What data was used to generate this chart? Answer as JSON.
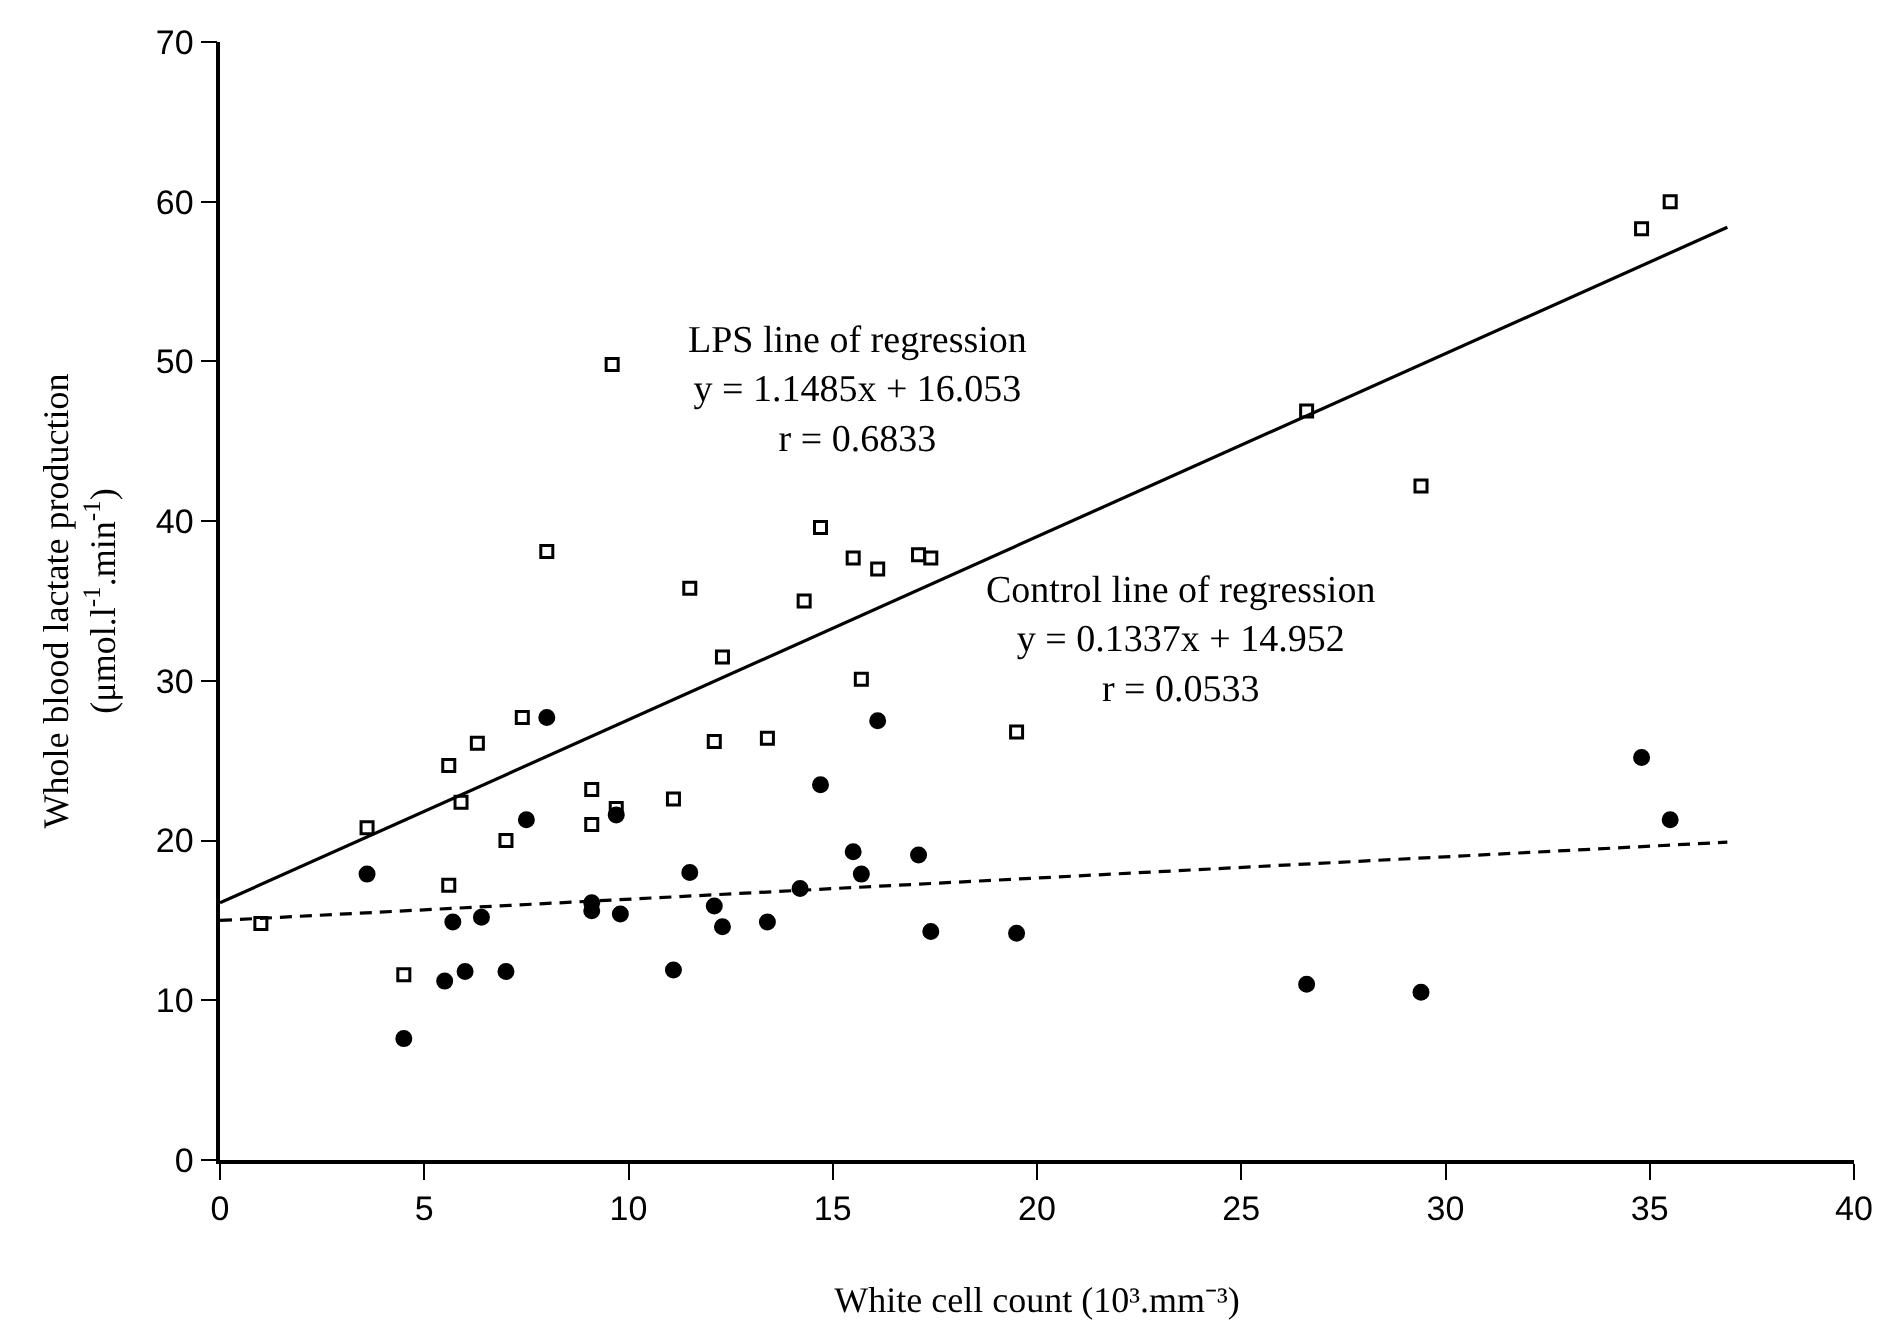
{
  "chart_data": {
    "type": "scatter",
    "xlabel": "White cell count (10³.mm⁻³)",
    "ylabel": "Whole blood lactate production\n(μmol.l$^{-1}$.min$^{-1}$)",
    "xlim": [
      0,
      40
    ],
    "xticks": [
      0,
      5,
      10,
      15,
      20,
      25,
      30,
      35,
      40
    ],
    "ylim": [
      0,
      70
    ],
    "yticks": [
      0,
      10,
      20,
      30,
      40,
      50,
      60,
      70
    ],
    "series": [
      {
        "marker": "square",
        "color": "#000000",
        "x": [
          1.0,
          3.6,
          4.5,
          5.6,
          5.6,
          5.9,
          6.3,
          7.0,
          7.4,
          8.0,
          9.1,
          9.1,
          9.6,
          9.7,
          11.1,
          11.5,
          12.1,
          12.3,
          13.4,
          14.3,
          14.7,
          15.5,
          15.7,
          16.1,
          17.1,
          17.4,
          19.5,
          26.6,
          29.4,
          34.8,
          35.5
        ],
        "values": [
          14.8,
          20.8,
          11.6,
          17.2,
          24.7,
          22.4,
          26.1,
          20.0,
          27.7,
          38.1,
          23.2,
          21.0,
          49.8,
          22.0,
          22.6,
          35.8,
          26.2,
          31.5,
          26.4,
          35.0,
          39.6,
          37.7,
          30.1,
          37.0,
          37.9,
          37.7,
          26.8,
          46.9,
          42.2,
          58.3,
          60.0
        ]
      },
      {
        "marker": "circle",
        "color": "#000000",
        "x": [
          3.6,
          4.5,
          5.5,
          5.7,
          6.0,
          6.4,
          7.0,
          7.5,
          8.0,
          9.1,
          9.1,
          9.7,
          9.8,
          11.1,
          11.5,
          12.1,
          12.3,
          13.4,
          14.2,
          14.7,
          15.5,
          15.7,
          16.1,
          17.1,
          17.4,
          19.5,
          26.6,
          29.4,
          34.8,
          35.5
        ],
        "values": [
          17.9,
          7.6,
          11.2,
          14.9,
          11.8,
          15.2,
          11.8,
          21.3,
          27.7,
          16.1,
          15.6,
          21.6,
          15.4,
          11.9,
          18.0,
          15.9,
          14.6,
          14.9,
          17.0,
          23.5,
          19.3,
          17.9,
          27.5,
          19.1,
          14.3,
          14.2,
          11.0,
          10.5,
          25.2,
          21.3
        ]
      },
      {
        "type": "line",
        "line_style": "solid",
        "marker": "none",
        "color": "#000000",
        "x": [
          0,
          36.9
        ],
        "values": [
          16.1,
          58.4
        ]
      },
      {
        "type": "line",
        "line_style": "dashed",
        "marker": "none",
        "color": "#000000",
        "x": [
          0,
          36.9
        ],
        "values": [
          15.0,
          19.9
        ]
      }
    ],
    "annotations": [
      "LPS line of regression\ny = 1.1485x + 16.053\nr = 0.6833",
      "Control line of regression\ny = 0.1337x + 14.952\nr = 0.0533"
    ]
  }
}
